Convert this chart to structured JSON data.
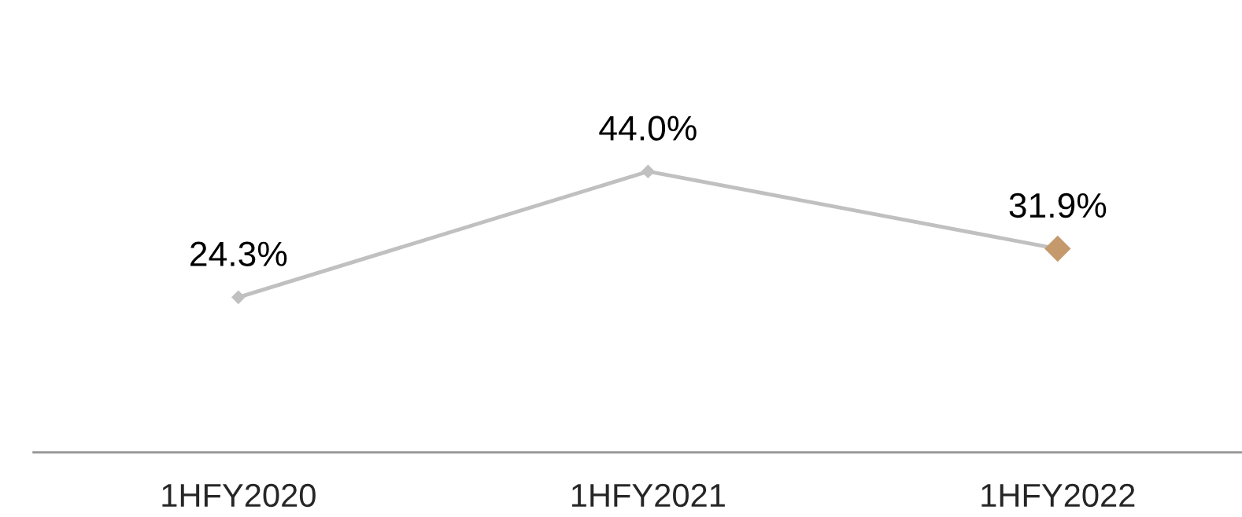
{
  "chart_data": {
    "type": "line",
    "categories": [
      "1HFY2020",
      "1HFY2021",
      "1HFY2022"
    ],
    "series": [
      {
        "color": "#c0c0c0",
        "colors": [
          "#c0c0c0",
          "#c0c0c0",
          "#c49a6c"
        ],
        "values": [
          24.3,
          44.0,
          31.9
        ],
        "value_labels": [
          "24.3%",
          "44.0%",
          "31.9%"
        ]
      }
    ],
    "marker": "diamond",
    "line_style": "solid",
    "grid": false,
    "tick_labels": "x"
  }
}
